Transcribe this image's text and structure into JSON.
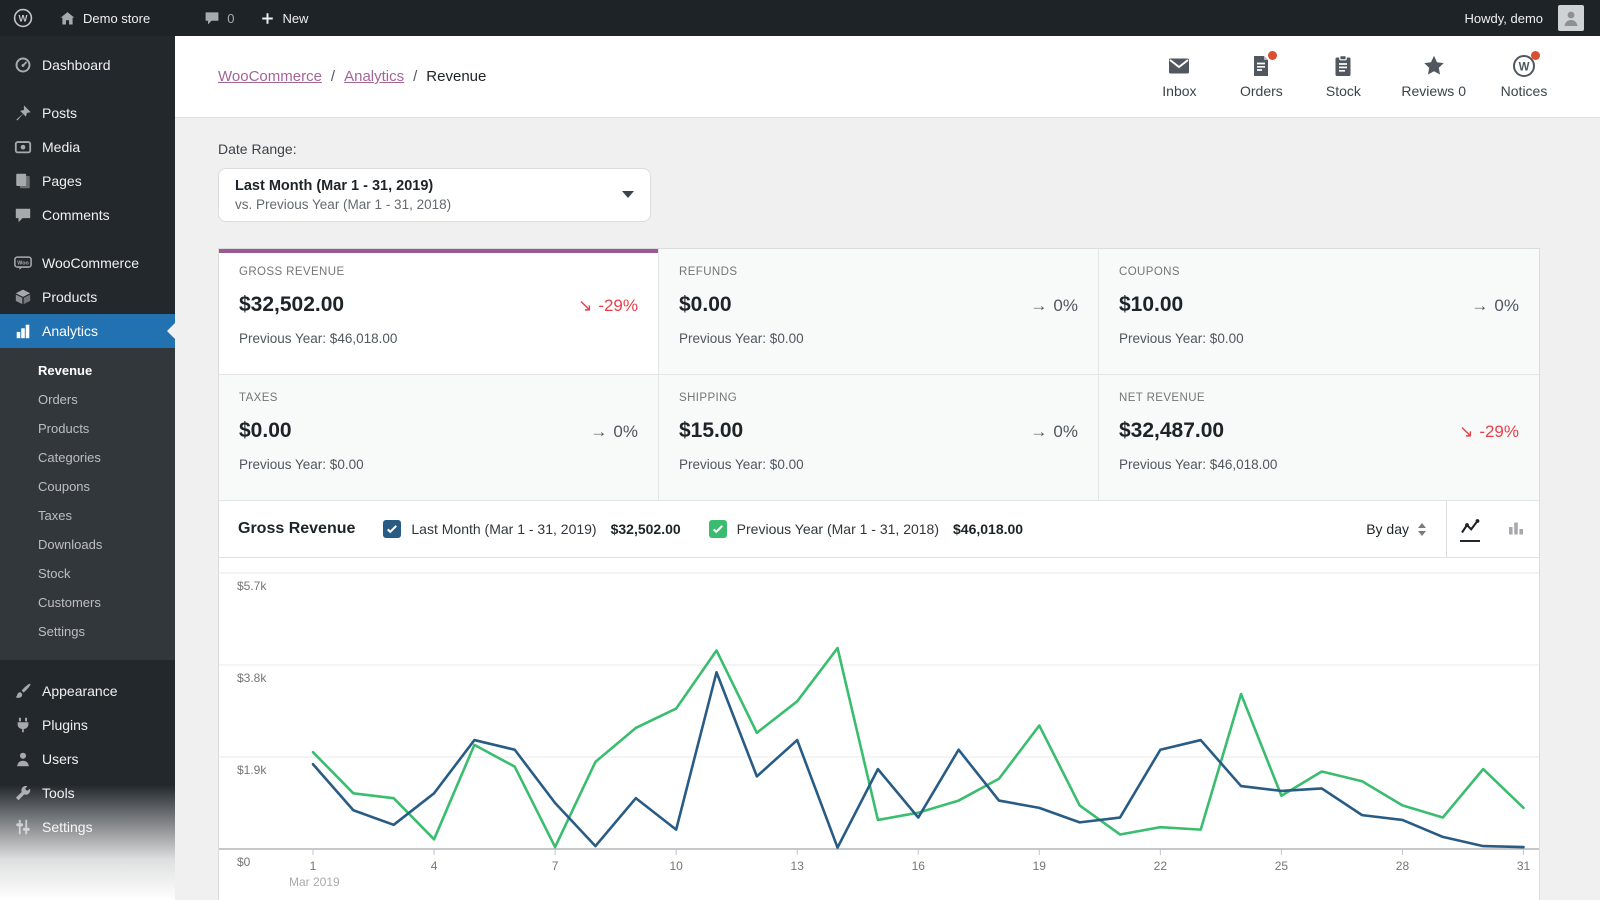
{
  "admin_bar": {
    "site_name": "Demo store",
    "comments_count": "0",
    "new_label": "New",
    "howdy": "Howdy, demo"
  },
  "sidebar": {
    "items": [
      {
        "label": "Dashboard"
      },
      {
        "label": "Posts"
      },
      {
        "label": "Media"
      },
      {
        "label": "Pages"
      },
      {
        "label": "Comments"
      },
      {
        "label": "WooCommerce"
      },
      {
        "label": "Products"
      },
      {
        "label": "Analytics"
      }
    ],
    "analytics_submenu": [
      "Revenue",
      "Orders",
      "Products",
      "Categories",
      "Coupons",
      "Taxes",
      "Downloads",
      "Stock",
      "Customers",
      "Settings"
    ],
    "bottom_items": [
      "Appearance",
      "Plugins",
      "Users",
      "Tools",
      "Settings"
    ]
  },
  "header": {
    "breadcrumb": {
      "link1": "WooCommerce",
      "link2": "Analytics",
      "current": "Revenue",
      "sep": "/"
    },
    "activity": {
      "inbox": "Inbox",
      "orders": "Orders",
      "stock": "Stock",
      "reviews": "Reviews 0",
      "notices": "Notices"
    }
  },
  "date_range": {
    "label": "Date Range:",
    "primary": "Last Month (Mar 1 - 31, 2019)",
    "secondary": "vs. Previous Year (Mar 1 - 31, 2018)"
  },
  "tiles": [
    {
      "label": "GROSS REVENUE",
      "value": "$32,502.00",
      "arrow": "↘",
      "delta": "-29%",
      "trend": "down",
      "prev": "Previous Year: $46,018.00",
      "selected": true
    },
    {
      "label": "REFUNDS",
      "value": "$0.00",
      "arrow": "→",
      "delta": "0%",
      "trend": "flat",
      "prev": "Previous Year: $0.00",
      "selected": false
    },
    {
      "label": "COUPONS",
      "value": "$10.00",
      "arrow": "→",
      "delta": "0%",
      "trend": "flat",
      "prev": "Previous Year: $0.00",
      "selected": false
    },
    {
      "label": "TAXES",
      "value": "$0.00",
      "arrow": "→",
      "delta": "0%",
      "trend": "flat",
      "prev": "Previous Year: $0.00",
      "selected": false
    },
    {
      "label": "SHIPPING",
      "value": "$15.00",
      "arrow": "→",
      "delta": "0%",
      "trend": "flat",
      "prev": "Previous Year: $0.00",
      "selected": false
    },
    {
      "label": "NET REVENUE",
      "value": "$32,487.00",
      "arrow": "↘",
      "delta": "-29%",
      "trend": "down",
      "prev": "Previous Year: $46,018.00",
      "selected": false
    }
  ],
  "chart_header": {
    "title": "Gross Revenue",
    "legend": [
      {
        "label": "Last Month (Mar 1 - 31, 2019)",
        "total": "$32,502.00",
        "color": "#295c85",
        "checked": true
      },
      {
        "label": "Previous Year (Mar 1 - 31, 2018)",
        "total": "$46,018.00",
        "color": "#3abd6f",
        "checked": true
      }
    ],
    "interval": "By day"
  },
  "chart_data": {
    "type": "line",
    "title": "Gross Revenue",
    "x": [
      1,
      2,
      3,
      4,
      5,
      6,
      7,
      8,
      9,
      10,
      11,
      12,
      13,
      14,
      15,
      16,
      17,
      18,
      19,
      20,
      21,
      22,
      23,
      24,
      25,
      26,
      27,
      28,
      29,
      30,
      31
    ],
    "xticks": [
      1,
      4,
      7,
      10,
      13,
      16,
      19,
      22,
      25,
      28,
      31
    ],
    "x_axis_note": "Mar 2019",
    "yticks": [
      {
        "v": 0,
        "label": "$0"
      },
      {
        "v": 1900,
        "label": "$1.9k"
      },
      {
        "v": 3800,
        "label": "$3.8k"
      },
      {
        "v": 5700,
        "label": "$5.7k"
      }
    ],
    "ylim": [
      0,
      5900
    ],
    "grid": "horizontal",
    "legend_position": "header",
    "series": [
      {
        "name": "Last Month (Mar 1 - 31, 2019)",
        "color": "#295c85",
        "values": [
          1750,
          800,
          500,
          1150,
          2250,
          2050,
          950,
          60,
          1050,
          400,
          3650,
          1500,
          2250,
          30,
          1650,
          650,
          2050,
          1000,
          850,
          550,
          650,
          2050,
          2250,
          1300,
          1200,
          1250,
          700,
          600,
          250,
          60,
          40
        ]
      },
      {
        "name": "Previous Year (Mar 1 - 31, 2018)",
        "color": "#3abd6f",
        "values": [
          2000,
          1150,
          1050,
          200,
          2150,
          1700,
          40,
          1800,
          2500,
          2900,
          4100,
          2400,
          3050,
          4150,
          600,
          750,
          1000,
          1450,
          2550,
          900,
          300,
          450,
          400,
          3200,
          1100,
          1600,
          1400,
          900,
          650,
          1650,
          850
        ]
      }
    ]
  },
  "colors": {
    "accent_purple": "#9a5a8f",
    "link_purple": "#a36597",
    "negative_red": "#e8404a",
    "active_menu_blue": "#2271b1",
    "badge_dot": "#d94f30"
  }
}
